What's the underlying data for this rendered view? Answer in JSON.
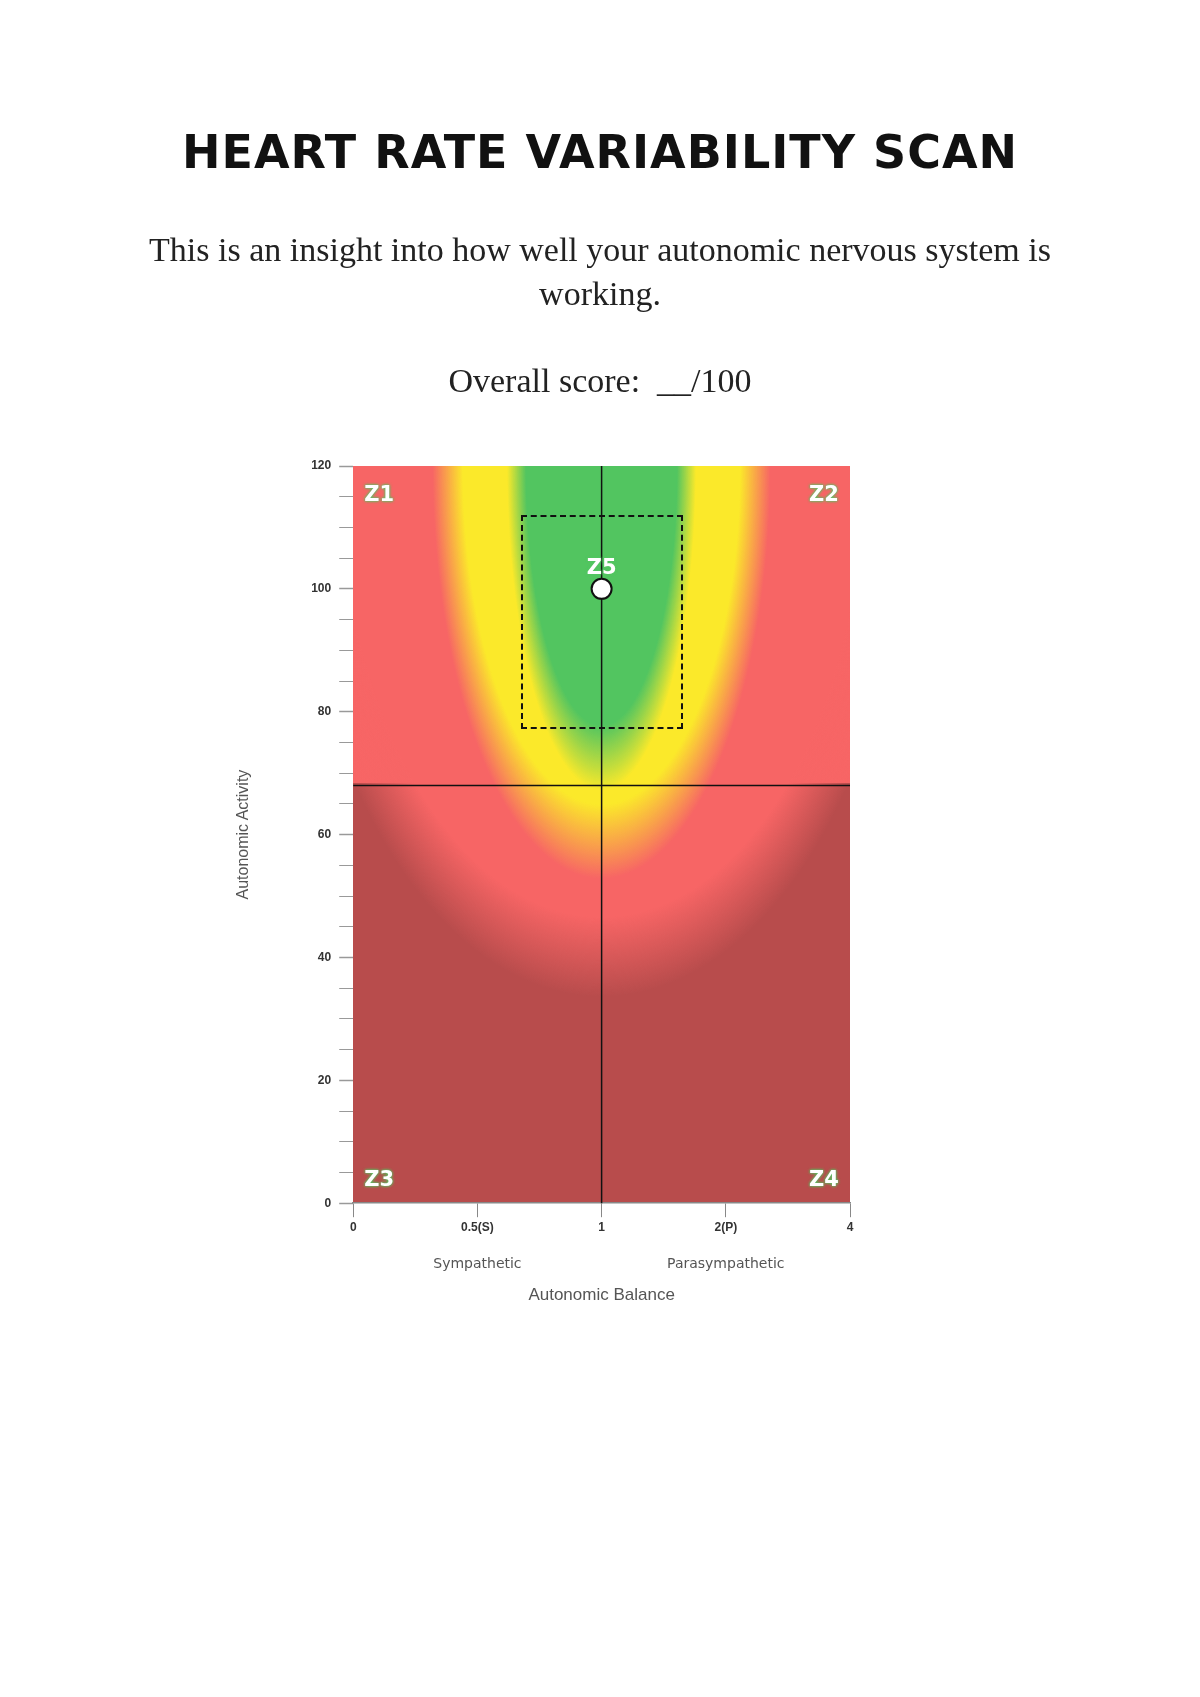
{
  "chart_data": {
    "type": "scatter",
    "title": "HEART RATE VARIABILITY SCAN",
    "subtitle": "This is an insight into how well your autonomic nervous system is working.",
    "xlabel": "Autonomic Balance",
    "ylabel": "Autonomic Activity",
    "categories": [
      "0",
      "0.5(S)",
      "1",
      "2(P)",
      "4"
    ],
    "ylim": [
      0,
      120
    ],
    "yticks": [
      0,
      {
        "value": 5,
        "label": null
      },
      {
        "value": 10,
        "label": null
      },
      {
        "value": 15,
        "label": null
      },
      20,
      {
        "value": 25,
        "label": null
      },
      {
        "value": 30,
        "label": null
      },
      {
        "value": 35,
        "label": null
      },
      40,
      {
        "value": 45,
        "label": null
      },
      {
        "value": 50,
        "label": null
      },
      {
        "value": 55,
        "label": null
      },
      60,
      {
        "value": 65,
        "label": null
      },
      {
        "value": 70,
        "label": null
      },
      {
        "value": 75,
        "label": null
      },
      80,
      {
        "value": 85,
        "label": null
      },
      {
        "value": 90,
        "label": null
      },
      {
        "value": 95,
        "label": null
      },
      100,
      {
        "value": 105,
        "label": null
      },
      {
        "value": 110,
        "label": null
      },
      {
        "value": 115,
        "label": null
      },
      120
    ],
    "grid": false,
    "marker": "circle",
    "series": [
      {
        "x": [
          "1"
        ],
        "values": [
          100
        ],
        "color": "#ffffff"
      }
    ],
    "ref_lines": [
      {
        "axis": "x",
        "value": "1",
        "color": "#111111"
      },
      {
        "axis": "y",
        "value": 68,
        "color": "#111111"
      }
    ],
    "annotations": [
      "Overall score:  __/100",
      "Z1",
      "Z2",
      "Z3",
      "Z4",
      "Z5",
      "Sympathetic",
      "Parasympathetic"
    ]
  }
}
